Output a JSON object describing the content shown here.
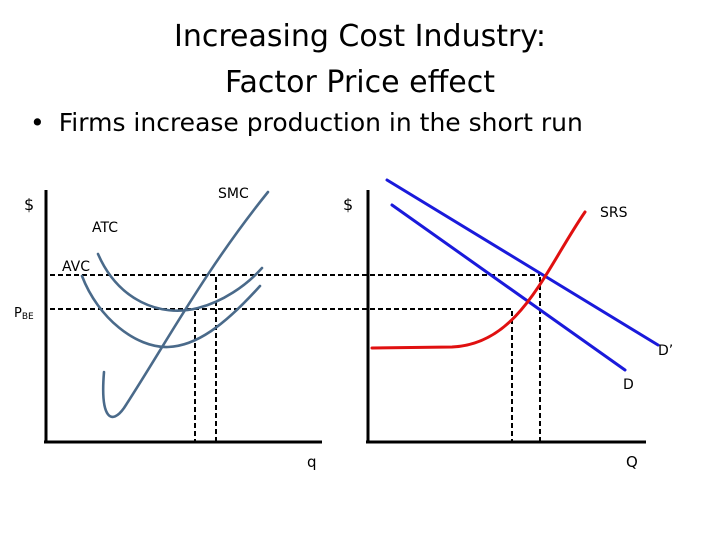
{
  "slide": {
    "title_line1": "Increasing Cost Industry:",
    "title_line2": "Factor Price effect",
    "bullet": "Firms increase production in the short run"
  },
  "firm_graph": {
    "y_label": "$",
    "x_label": "q",
    "curve_labels": {
      "smc": "SMC",
      "atc": "ATC",
      "avc": "AVC"
    },
    "price_label_main": "P",
    "price_label_sub": "BE"
  },
  "industry_graph": {
    "y_label": "$",
    "x_label": "Q",
    "curve_labels": {
      "srs": "SRS",
      "d": "D",
      "d_prime": "D’"
    }
  },
  "colors": {
    "firm_curves": "#4a6a8a",
    "demand": "#1a1adb",
    "supply": "#e01010",
    "axes": "#000000",
    "dashed": "#000000"
  }
}
